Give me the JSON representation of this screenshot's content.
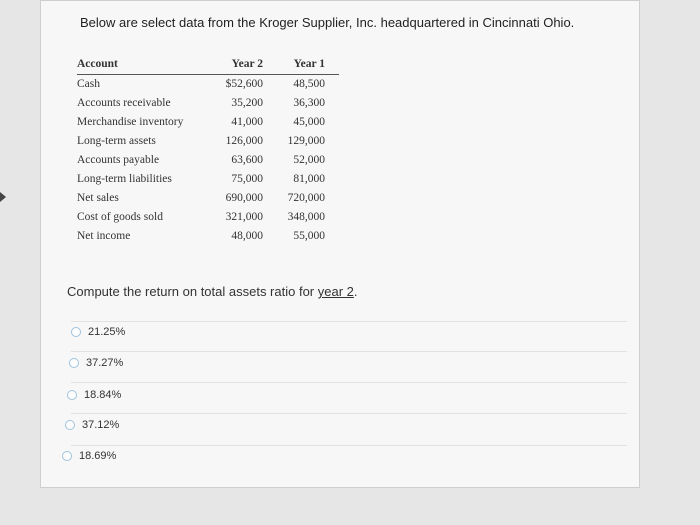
{
  "intro": "Below are select data from the Kroger Supplier, Inc. headquartered in Cincinnati Ohio.",
  "table": {
    "headers": [
      "Account",
      "Year 2",
      "Year 1"
    ],
    "rows": [
      [
        "Cash",
        "$52,600",
        "48,500"
      ],
      [
        "Accounts receivable",
        "35,200",
        "36,300"
      ],
      [
        "Merchandise inventory",
        "41,000",
        "45,000"
      ],
      [
        "Long-term assets",
        "126,000",
        "129,000"
      ],
      [
        "Accounts payable",
        "63,600",
        "52,000"
      ],
      [
        "Long-term liabilities",
        "75,000",
        "81,000"
      ],
      [
        "Net sales",
        "690,000",
        "720,000"
      ],
      [
        "Cost of goods sold",
        "321,000",
        "348,000"
      ],
      [
        "Net income",
        "48,000",
        "55,000"
      ]
    ]
  },
  "question": {
    "prefix": "Compute the return on total assets ratio for ",
    "underlined": "year 2",
    "suffix": "."
  },
  "options": [
    "21.25%",
    "37.27%",
    "18.84%",
    "37.12%",
    "18.69%"
  ]
}
